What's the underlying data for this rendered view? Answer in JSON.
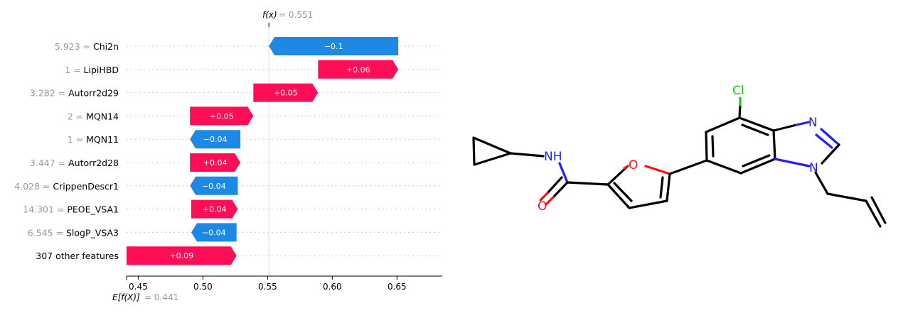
{
  "chart_data": {
    "type": "waterfall",
    "fx_label": "f(x)",
    "fx_value": "= 0.551",
    "fx": 0.551,
    "base_label": "E[f(X)]",
    "base_value": "= 0.441",
    "base": 0.441,
    "xticks": [
      "0.45",
      "0.50",
      "0.55",
      "0.60",
      "0.65"
    ],
    "xtick_values": [
      0.45,
      0.5,
      0.55,
      0.6,
      0.65
    ],
    "xlim": [
      0.441,
      0.685
    ],
    "positive_color": "#ff0d57",
    "negative_color": "#1e88e5",
    "rows": [
      {
        "value": "5.923",
        "feature": "Chi2n",
        "label": "−0.1",
        "start": 0.651,
        "end": 0.551
      },
      {
        "value": "1",
        "feature": "LipiHBD",
        "label": "+0.06",
        "start": 0.589,
        "end": 0.651
      },
      {
        "value": "3.282",
        "feature": "Autorr2d29",
        "label": "+0.05",
        "start": 0.539,
        "end": 0.589
      },
      {
        "value": "2",
        "feature": "MQN14",
        "label": "+0.05",
        "start": 0.49,
        "end": 0.539
      },
      {
        "value": "1",
        "feature": "MQN11",
        "label": "−0.04",
        "start": 0.529,
        "end": 0.49
      },
      {
        "value": "3.447",
        "feature": "Autorr2d28",
        "label": "+0.04",
        "start": 0.49,
        "end": 0.529
      },
      {
        "value": "4.028",
        "feature": "CrippenDescr1",
        "label": "−0.04",
        "start": 0.527,
        "end": 0.49
      },
      {
        "value": "14.301",
        "feature": "PEOE_VSA1",
        "label": "+0.04",
        "start": 0.491,
        "end": 0.527
      },
      {
        "value": "6.545",
        "feature": "SlogP_VSA3",
        "label": "−0.04",
        "start": 0.526,
        "end": 0.491
      },
      {
        "value": "",
        "feature": "307 other features",
        "label": "+0.09",
        "start": 0.441,
        "end": 0.526
      }
    ]
  },
  "molecule": {
    "atom_labels": {
      "cl": "Cl",
      "n_top": "N",
      "n_bottom": "N",
      "o_ring": "O",
      "nh": "NH",
      "o_carbonyl": "O"
    },
    "colors": {
      "bond": "#000000",
      "chlorine": "#1ec81e",
      "nitrogen": "#2020ff",
      "oxygen": "#ff1010"
    }
  }
}
